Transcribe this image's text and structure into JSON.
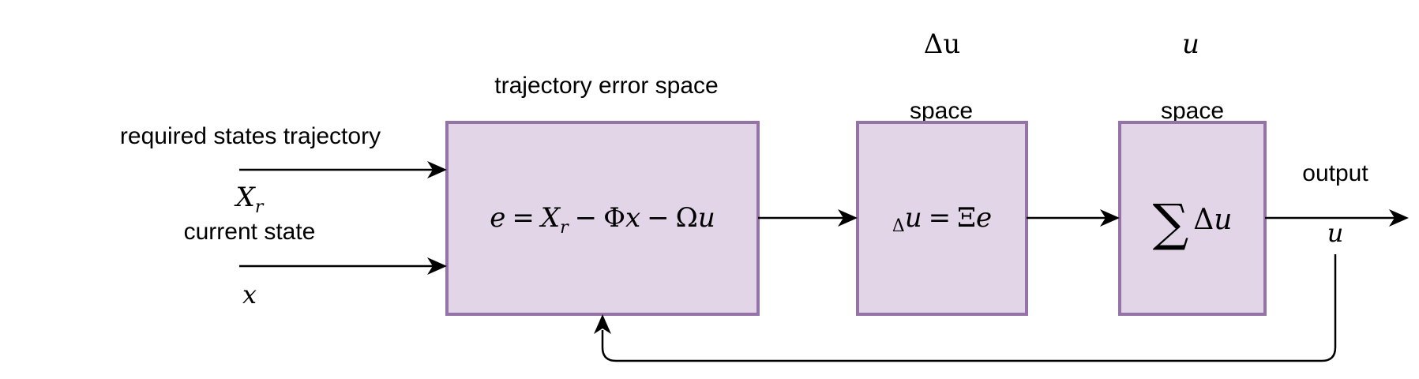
{
  "labels": {
    "error_space_title": "trajectory error space",
    "du_space_symbol": "Δu",
    "du_space_word": "space",
    "u_space_symbol": "u",
    "u_space_word": "space",
    "required_states": "required states trajectory",
    "required_states_symbol_base": "X",
    "required_states_symbol_sub": "r",
    "current_state": "current state",
    "current_state_symbol": "x",
    "output": "output",
    "output_symbol": "u"
  },
  "blocks": {
    "error": {
      "e": "e",
      "eq": "=",
      "Xr_base": "X",
      "Xr_sub": "r",
      "minus1": "−",
      "Phi": "Φ",
      "x": "x",
      "minus2": "−",
      "Omega": "Ω",
      "u": "u"
    },
    "delta_u": {
      "delta": "Δ",
      "u": "u",
      "eq": "=",
      "Xi": "Ξ",
      "e": "e"
    },
    "sum": {
      "sigma": "∑",
      "delta": "Δ",
      "u": "u"
    }
  },
  "colors": {
    "block_fill": "#e1d5e7",
    "block_stroke": "#9673a6",
    "line": "#000000"
  }
}
